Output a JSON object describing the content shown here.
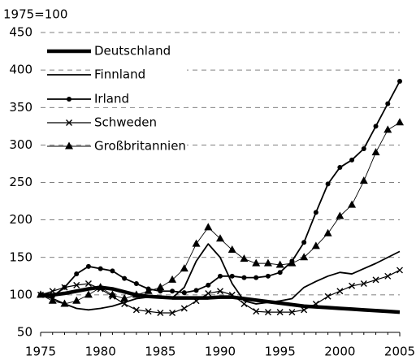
{
  "chart_data": {
    "type": "line",
    "ylabel": "1975=100",
    "x": [
      1975,
      1976,
      1977,
      1978,
      1979,
      1980,
      1981,
      1982,
      1983,
      1984,
      1985,
      1986,
      1987,
      1988,
      1989,
      1990,
      1991,
      1992,
      1993,
      1994,
      1995,
      1996,
      1997,
      1998,
      1999,
      2000,
      2001,
      2002,
      2003,
      2004,
      2005
    ],
    "xlim": [
      1975,
      2005
    ],
    "xticks": [
      1975,
      1980,
      1985,
      1990,
      1995,
      2000,
      2005
    ],
    "ylim": [
      50,
      450
    ],
    "yticks": [
      50,
      100,
      150,
      200,
      250,
      300,
      350,
      400,
      450
    ],
    "grid": true,
    "legend": "upper left",
    "series": [
      {
        "name": "Deutschland",
        "color": "#000000",
        "linewidth": 4.5,
        "marker": "none",
        "values": [
          100,
          100,
          102,
          105,
          108,
          110,
          108,
          104,
          100,
          98,
          97,
          96,
          96,
          96,
          96,
          97,
          97,
          95,
          93,
          91,
          89,
          87,
          85,
          84,
          83,
          82,
          81,
          80,
          79,
          78,
          77
        ]
      },
      {
        "name": "Finnland",
        "color": "#000000",
        "linewidth": 1.8,
        "marker": "none",
        "values": [
          100,
          95,
          88,
          82,
          80,
          82,
          85,
          90,
          95,
          97,
          97,
          96,
          110,
          145,
          168,
          150,
          115,
          92,
          88,
          90,
          92,
          95,
          110,
          118,
          125,
          130,
          128,
          135,
          142,
          150,
          158
        ]
      },
      {
        "name": "Irland",
        "color": "#000000",
        "linewidth": 1.8,
        "marker": "circle",
        "values": [
          100,
          98,
          110,
          128,
          138,
          135,
          132,
          122,
          115,
          108,
          105,
          105,
          103,
          106,
          113,
          125,
          125,
          123,
          123,
          125,
          130,
          145,
          170,
          210,
          248,
          270,
          280,
          295,
          325,
          355,
          385
        ]
      },
      {
        "name": "Schweden",
        "color": "#000000",
        "linewidth": 1.2,
        "marker": "x",
        "values": [
          100,
          105,
          110,
          113,
          115,
          108,
          98,
          88,
          80,
          78,
          76,
          76,
          82,
          92,
          102,
          105,
          100,
          88,
          78,
          77,
          77,
          77,
          80,
          88,
          98,
          105,
          112,
          115,
          120,
          125,
          133
        ]
      },
      {
        "name": "Großbritannien",
        "color": "#000000",
        "linewidth": 0.9,
        "marker": "triangle",
        "values": [
          100,
          92,
          88,
          92,
          100,
          110,
          100,
          95,
          100,
          105,
          110,
          120,
          135,
          168,
          190,
          175,
          160,
          148,
          142,
          142,
          140,
          142,
          150,
          165,
          182,
          205,
          220,
          252,
          290,
          320,
          330
        ]
      }
    ]
  }
}
